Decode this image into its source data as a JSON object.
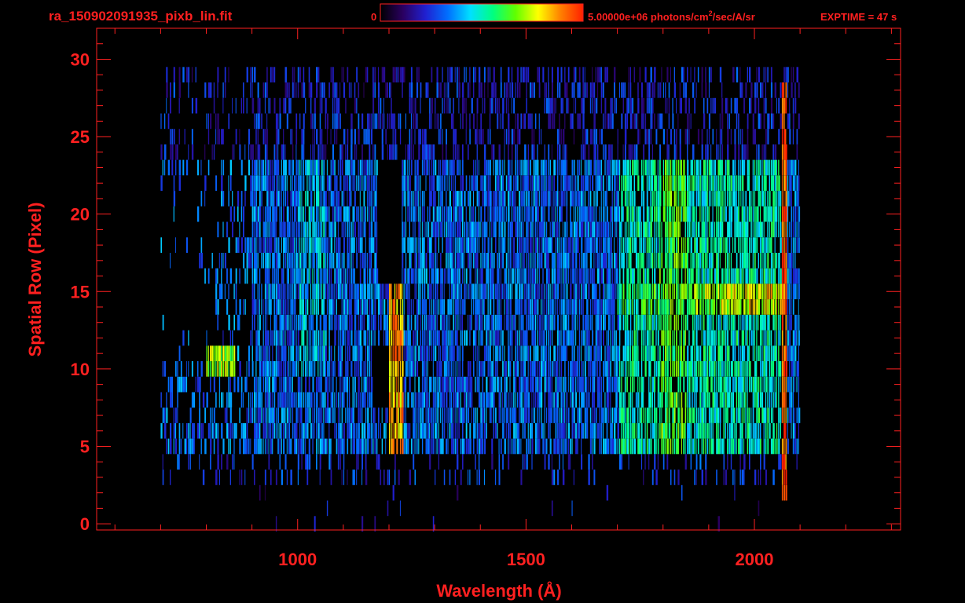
{
  "header": {
    "filename": "ra_150902091935_pixb_lin.fit",
    "colorbar_min_label": "0",
    "colorbar_max_label_pre": "5.00000e+06 photons/cm",
    "colorbar_max_label_sup": "2",
    "colorbar_max_label_post": "/sec/A/sr",
    "exptime": "EXPTIME = 47 s"
  },
  "colors": {
    "axis": "#ff2020",
    "background": "#000000",
    "colormap": [
      "#000000",
      "#2a0060",
      "#2020d0",
      "#0070ff",
      "#00e0ff",
      "#00ff80",
      "#60ff00",
      "#ffff00",
      "#ff8000",
      "#ff2000"
    ]
  },
  "chart_data": {
    "type": "heatmap",
    "xlabel": "Wavelength (Å)",
    "ylabel": "Spatial Row (Pixel)",
    "xlim": [
      560,
      2320
    ],
    "ylim": [
      -0.4,
      32.0
    ],
    "xticks": [
      1000,
      1500,
      2000
    ],
    "yticks": [
      0,
      5,
      10,
      15,
      20,
      25,
      30
    ],
    "colorbar_range": [
      0,
      5000000
    ],
    "colorbar_unit": "photons/cm2/sec/A/sr",
    "rows": [
      0,
      29
    ],
    "wavelength_extent": [
      700,
      2100
    ],
    "features": [
      {
        "name": "bright emission band",
        "rows": [
          14,
          15
        ],
        "x": [
          1700,
          2060
        ],
        "level": 0.8
      },
      {
        "name": "vertical emission line",
        "x": [
          1200,
          1230
        ],
        "rows": [
          5,
          15
        ],
        "level": 0.85
      },
      {
        "name": "bright knot",
        "x": [
          800,
          860
        ],
        "rows": [
          10,
          11
        ],
        "level": 0.7
      },
      {
        "name": "red edge column",
        "x": [
          2060,
          2070
        ],
        "rows": [
          2,
          28
        ],
        "level": 0.95
      }
    ]
  }
}
